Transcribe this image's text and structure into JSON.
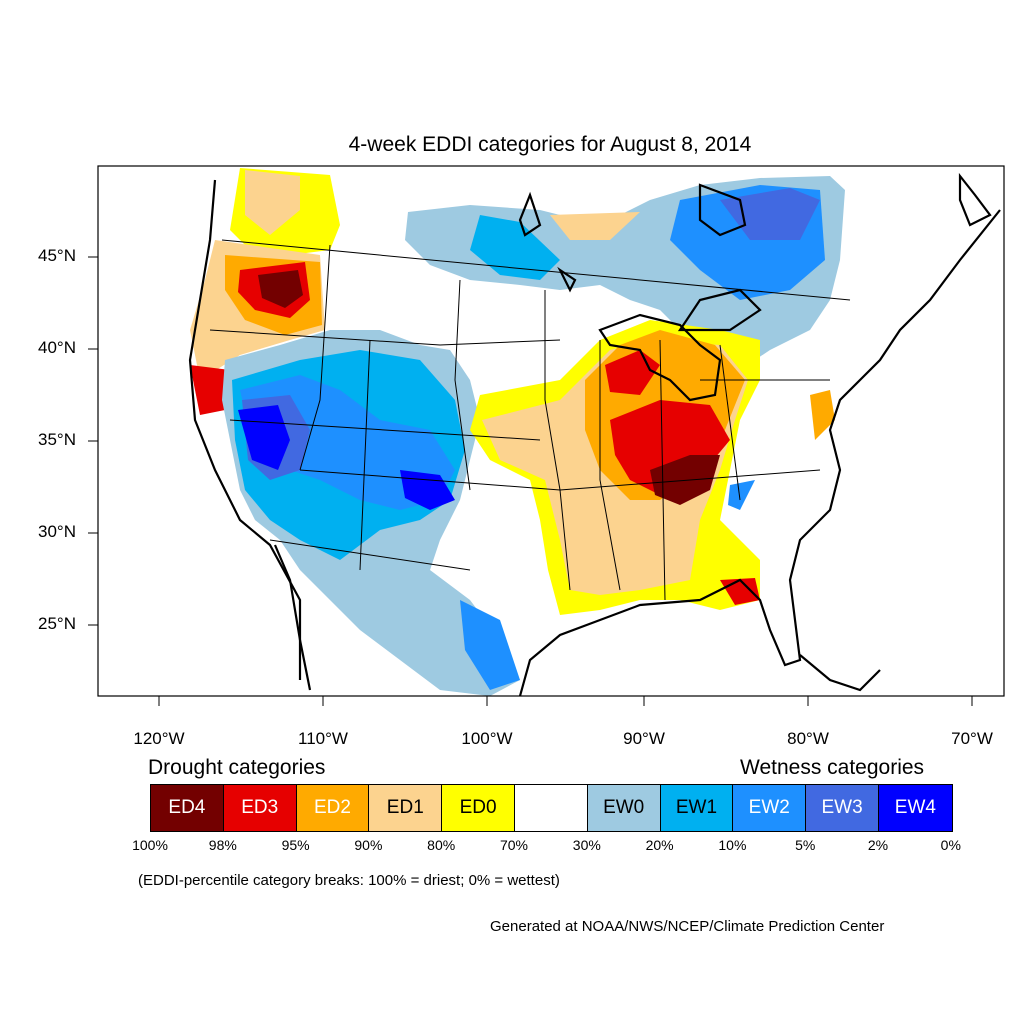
{
  "title": "4-week EDDI categories for August 8, 2014",
  "latitude_labels": [
    "45°N",
    "40°N",
    "35°N",
    "30°N",
    "25°N"
  ],
  "longitude_labels": [
    "120°W",
    "110°W",
    "100°W",
    "90°W",
    "80°W",
    "70°W"
  ],
  "legend": {
    "drought_heading": "Drought categories",
    "wetness_heading": "Wetness categories",
    "categories": [
      {
        "label": "ED4",
        "color": "#730000",
        "text_color": "#ffffff"
      },
      {
        "label": "ED3",
        "color": "#e60000",
        "text_color": "#ffffff"
      },
      {
        "label": "ED2",
        "color": "#ffaa00",
        "text_color": "#ffffff"
      },
      {
        "label": "ED1",
        "color": "#fcd38f",
        "text_color": "#000000"
      },
      {
        "label": "ED0",
        "color": "#ffff00",
        "text_color": "#000000"
      },
      {
        "label": "",
        "color": "#ffffff",
        "text_color": "#000000"
      },
      {
        "label": "EW0",
        "color": "#9ecae1",
        "text_color": "#000000"
      },
      {
        "label": "EW1",
        "color": "#00b0f0",
        "text_color": "#000000"
      },
      {
        "label": "EW2",
        "color": "#1e90ff",
        "text_color": "#ffffff"
      },
      {
        "label": "EW3",
        "color": "#4169e1",
        "text_color": "#ffffff"
      },
      {
        "label": "EW4",
        "color": "#0000ff",
        "text_color": "#ffffff"
      }
    ],
    "percentile_breaks": [
      "100%",
      "98%",
      "95%",
      "90%",
      "80%",
      "70%",
      "30%",
      "20%",
      "10%",
      "5%",
      "2%",
      "0%"
    ]
  },
  "note": "(EDDI-percentile category breaks: 100% = driest; 0% = wettest)",
  "credit": "Generated at NOAA/NWS/NCEP/Climate Prediction Center"
}
